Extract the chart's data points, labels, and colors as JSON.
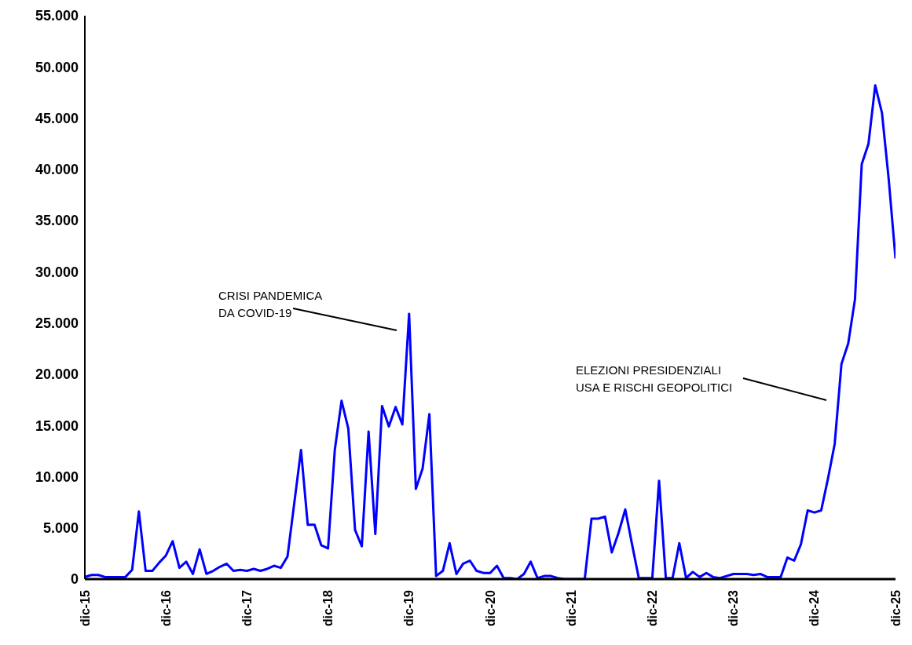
{
  "chart_data": {
    "type": "line",
    "categories": [
      "dic-15",
      null,
      null,
      null,
      null,
      null,
      null,
      null,
      null,
      null,
      null,
      null,
      "dic-16",
      null,
      null,
      null,
      null,
      null,
      null,
      null,
      null,
      null,
      null,
      null,
      "dic-17",
      null,
      null,
      null,
      null,
      null,
      null,
      null,
      null,
      null,
      null,
      null,
      "dic-18",
      null,
      null,
      null,
      null,
      null,
      null,
      null,
      null,
      null,
      null,
      null,
      "dic-19",
      null,
      null,
      null,
      null,
      null,
      null,
      null,
      null,
      null,
      null,
      null,
      "dic-20",
      null,
      null,
      null,
      null,
      null,
      null,
      null,
      null,
      null,
      null,
      null,
      "dic-21",
      null,
      null,
      null,
      null,
      null,
      null,
      null,
      null,
      null,
      null,
      null,
      "dic-22",
      null,
      null,
      null,
      null,
      null,
      null,
      null,
      null,
      null,
      null,
      null,
      "dic-23",
      null,
      null,
      null,
      null,
      null,
      null,
      null,
      null,
      null,
      null,
      null,
      "dic-24",
      null,
      null,
      null,
      null,
      null,
      null,
      null,
      null,
      null,
      null,
      null,
      "dic-25"
    ],
    "series": [
      {
        "color": "#0000ff",
        "values": [
          200,
          400,
          400,
          200,
          200,
          200,
          200,
          900,
          6600,
          800,
          800,
          1600,
          2300,
          3700,
          1100,
          1700,
          500,
          2900,
          500,
          800,
          1200,
          1500,
          800,
          900,
          800,
          1000,
          800,
          1000,
          1300,
          1100,
          2200,
          7400,
          12600,
          5300,
          5300,
          3300,
          3000,
          12600,
          17400,
          14700,
          4800,
          3200,
          14400,
          4400,
          16900,
          14900,
          16800,
          15100,
          25900,
          8800,
          10800,
          16100,
          300,
          800,
          3500,
          500,
          1500,
          1800,
          800,
          600,
          600,
          1300,
          100,
          100,
          0,
          500,
          1700,
          100,
          300,
          300,
          100,
          0,
          0,
          0,
          0,
          5900,
          5900,
          6100,
          2600,
          4500,
          6800,
          3400,
          100,
          100,
          100,
          9600,
          100,
          100,
          3500,
          100,
          700,
          200,
          600,
          200,
          100,
          300,
          500,
          500,
          500,
          400,
          500,
          200,
          200,
          200,
          2100,
          1800,
          3400,
          6700,
          6500,
          6700,
          9800,
          13200,
          21000,
          23000,
          27300,
          40500,
          42500,
          48200,
          45500,
          39000,
          31300
        ]
      }
    ],
    "ylim": [
      0,
      55000
    ],
    "yticks": [
      {
        "value": 0,
        "label": "0"
      },
      {
        "value": 5000,
        "label": "5.000"
      },
      {
        "value": 10000,
        "label": "10.000"
      },
      {
        "value": 15000,
        "label": "15.000"
      },
      {
        "value": 20000,
        "label": "20.000"
      },
      {
        "value": 25000,
        "label": "25.000"
      },
      {
        "value": 30000,
        "label": "30.000"
      },
      {
        "value": 35000,
        "label": "35.000"
      },
      {
        "value": 40000,
        "label": "40.000"
      },
      {
        "value": 45000,
        "label": "45.000"
      },
      {
        "value": 50000,
        "label": "50.000"
      },
      {
        "value": 55000,
        "label": "55.000"
      }
    ],
    "grid": false,
    "legend": false,
    "marker": "none",
    "line_style": "solid",
    "annotations": [
      "CRISI PANDEMICA\nDA COVID-19",
      "ELEZIONI PRESIDENZIALI\nUSA E RISCHI GEOPOLITICI"
    ]
  }
}
